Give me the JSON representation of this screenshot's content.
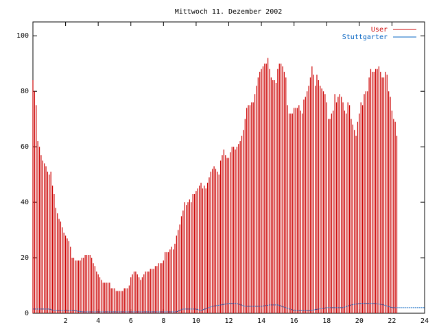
{
  "chart_data": {
    "type": "bar",
    "title": "Mittwoch 11. Dezember 2002",
    "xlim": [
      0,
      24
    ],
    "ylim": [
      0,
      105
    ],
    "xticks": [
      2,
      4,
      6,
      8,
      10,
      12,
      14,
      16,
      18,
      20,
      22,
      24
    ],
    "yticks": [
      0,
      20,
      40,
      60,
      80,
      100
    ],
    "legend_position": "top-right",
    "series": [
      {
        "name": "User",
        "kind": "impulses",
        "color": "#cc0000",
        "points": [
          [
            0.0,
            84
          ],
          [
            0.1,
            80
          ],
          [
            0.2,
            75
          ],
          [
            0.3,
            62
          ],
          [
            0.4,
            60
          ],
          [
            0.5,
            57
          ],
          [
            0.6,
            55
          ],
          [
            0.7,
            54
          ],
          [
            0.8,
            53
          ],
          [
            0.9,
            51
          ],
          [
            1.0,
            50
          ],
          [
            1.1,
            51
          ],
          [
            1.2,
            46
          ],
          [
            1.3,
            43
          ],
          [
            1.4,
            38
          ],
          [
            1.5,
            36
          ],
          [
            1.6,
            34
          ],
          [
            1.7,
            33
          ],
          [
            1.8,
            31
          ],
          [
            1.9,
            29
          ],
          [
            2.0,
            28
          ],
          [
            2.1,
            27
          ],
          [
            2.2,
            26
          ],
          [
            2.3,
            24
          ],
          [
            2.4,
            20
          ],
          [
            2.5,
            20
          ],
          [
            2.6,
            19
          ],
          [
            2.7,
            19
          ],
          [
            2.8,
            19
          ],
          [
            2.9,
            19
          ],
          [
            3.0,
            20
          ],
          [
            3.1,
            20
          ],
          [
            3.2,
            21
          ],
          [
            3.3,
            21
          ],
          [
            3.4,
            21
          ],
          [
            3.5,
            21
          ],
          [
            3.6,
            20
          ],
          [
            3.7,
            18
          ],
          [
            3.8,
            17
          ],
          [
            3.9,
            15
          ],
          [
            4.0,
            14
          ],
          [
            4.1,
            13
          ],
          [
            4.2,
            12
          ],
          [
            4.3,
            11
          ],
          [
            4.4,
            11
          ],
          [
            4.5,
            11
          ],
          [
            4.6,
            11
          ],
          [
            4.7,
            11
          ],
          [
            4.8,
            9
          ],
          [
            4.9,
            9
          ],
          [
            5.0,
            9
          ],
          [
            5.1,
            8
          ],
          [
            5.2,
            8
          ],
          [
            5.3,
            8
          ],
          [
            5.4,
            8
          ],
          [
            5.5,
            8
          ],
          [
            5.6,
            9
          ],
          [
            5.7,
            9
          ],
          [
            5.8,
            9
          ],
          [
            5.9,
            10
          ],
          [
            6.0,
            13
          ],
          [
            6.1,
            14
          ],
          [
            6.2,
            15
          ],
          [
            6.3,
            15
          ],
          [
            6.4,
            14
          ],
          [
            6.5,
            13
          ],
          [
            6.6,
            12
          ],
          [
            6.7,
            13
          ],
          [
            6.8,
            14
          ],
          [
            6.9,
            15
          ],
          [
            7.0,
            15
          ],
          [
            7.1,
            15
          ],
          [
            7.2,
            16
          ],
          [
            7.3,
            16
          ],
          [
            7.4,
            16
          ],
          [
            7.5,
            17
          ],
          [
            7.6,
            17
          ],
          [
            7.7,
            18
          ],
          [
            7.8,
            18
          ],
          [
            7.9,
            18
          ],
          [
            8.0,
            19
          ],
          [
            8.1,
            22
          ],
          [
            8.2,
            22
          ],
          [
            8.3,
            22
          ],
          [
            8.4,
            23
          ],
          [
            8.5,
            24
          ],
          [
            8.6,
            23
          ],
          [
            8.7,
            25
          ],
          [
            8.8,
            28
          ],
          [
            8.9,
            30
          ],
          [
            9.0,
            32
          ],
          [
            9.1,
            35
          ],
          [
            9.2,
            37
          ],
          [
            9.3,
            40
          ],
          [
            9.4,
            39
          ],
          [
            9.5,
            40
          ],
          [
            9.6,
            41
          ],
          [
            9.7,
            40
          ],
          [
            9.8,
            43
          ],
          [
            9.9,
            43
          ],
          [
            10.0,
            44
          ],
          [
            10.1,
            45
          ],
          [
            10.2,
            46
          ],
          [
            10.3,
            47
          ],
          [
            10.4,
            45
          ],
          [
            10.5,
            46
          ],
          [
            10.6,
            45
          ],
          [
            10.7,
            47
          ],
          [
            10.8,
            49
          ],
          [
            10.9,
            51
          ],
          [
            11.0,
            52
          ],
          [
            11.1,
            53
          ],
          [
            11.2,
            52
          ],
          [
            11.3,
            51
          ],
          [
            11.4,
            50
          ],
          [
            11.5,
            55
          ],
          [
            11.6,
            57
          ],
          [
            11.7,
            59
          ],
          [
            11.8,
            57
          ],
          [
            11.9,
            56
          ],
          [
            12.0,
            56
          ],
          [
            12.1,
            58
          ],
          [
            12.2,
            60
          ],
          [
            12.3,
            60
          ],
          [
            12.4,
            59
          ],
          [
            12.5,
            60
          ],
          [
            12.6,
            61
          ],
          [
            12.7,
            62
          ],
          [
            12.8,
            64
          ],
          [
            12.9,
            66
          ],
          [
            13.0,
            70
          ],
          [
            13.1,
            74
          ],
          [
            13.2,
            75
          ],
          [
            13.3,
            75
          ],
          [
            13.4,
            76
          ],
          [
            13.5,
            76
          ],
          [
            13.6,
            79
          ],
          [
            13.7,
            82
          ],
          [
            13.8,
            85
          ],
          [
            13.9,
            87
          ],
          [
            14.0,
            88
          ],
          [
            14.1,
            89
          ],
          [
            14.2,
            90
          ],
          [
            14.3,
            90
          ],
          [
            14.4,
            92
          ],
          [
            14.5,
            88
          ],
          [
            14.6,
            85
          ],
          [
            14.7,
            84
          ],
          [
            14.8,
            84
          ],
          [
            14.9,
            83
          ],
          [
            15.0,
            88
          ],
          [
            15.1,
            90
          ],
          [
            15.2,
            90
          ],
          [
            15.3,
            89
          ],
          [
            15.4,
            87
          ],
          [
            15.5,
            85
          ],
          [
            15.6,
            75
          ],
          [
            15.7,
            72
          ],
          [
            15.8,
            72
          ],
          [
            15.9,
            72
          ],
          [
            16.0,
            74
          ],
          [
            16.1,
            74
          ],
          [
            16.2,
            74
          ],
          [
            16.3,
            75
          ],
          [
            16.4,
            73
          ],
          [
            16.5,
            72
          ],
          [
            16.6,
            77
          ],
          [
            16.7,
            78
          ],
          [
            16.8,
            80
          ],
          [
            16.9,
            82
          ],
          [
            17.0,
            85
          ],
          [
            17.1,
            89
          ],
          [
            17.2,
            86
          ],
          [
            17.3,
            82
          ],
          [
            17.4,
            86
          ],
          [
            17.5,
            84
          ],
          [
            17.6,
            82
          ],
          [
            17.7,
            81
          ],
          [
            17.8,
            80
          ],
          [
            17.9,
            79
          ],
          [
            18.0,
            76
          ],
          [
            18.1,
            70
          ],
          [
            18.2,
            70
          ],
          [
            18.3,
            72
          ],
          [
            18.4,
            73
          ],
          [
            18.5,
            79
          ],
          [
            18.6,
            76
          ],
          [
            18.7,
            78
          ],
          [
            18.8,
            79
          ],
          [
            18.9,
            78
          ],
          [
            19.0,
            76
          ],
          [
            19.1,
            73
          ],
          [
            19.2,
            72
          ],
          [
            19.3,
            76
          ],
          [
            19.4,
            75
          ],
          [
            19.5,
            70
          ],
          [
            19.6,
            68
          ],
          [
            19.7,
            66
          ],
          [
            19.8,
            64
          ],
          [
            19.9,
            69
          ],
          [
            20.0,
            72
          ],
          [
            20.1,
            76
          ],
          [
            20.2,
            75
          ],
          [
            20.3,
            79
          ],
          [
            20.4,
            80
          ],
          [
            20.5,
            80
          ],
          [
            20.6,
            85
          ],
          [
            20.7,
            88
          ],
          [
            20.8,
            87
          ],
          [
            20.9,
            87
          ],
          [
            21.0,
            88
          ],
          [
            21.1,
            88
          ],
          [
            21.2,
            89
          ],
          [
            21.3,
            87
          ],
          [
            21.4,
            85
          ],
          [
            21.5,
            85
          ],
          [
            21.6,
            87
          ],
          [
            21.7,
            86
          ],
          [
            21.8,
            80
          ],
          [
            21.9,
            78
          ],
          [
            22.0,
            73
          ],
          [
            22.1,
            70
          ],
          [
            22.2,
            69
          ],
          [
            22.3,
            64
          ]
        ]
      },
      {
        "name": "Stuttgarter",
        "kind": "line",
        "color": "#0060c0",
        "points": [
          [
            0,
            1.5
          ],
          [
            1,
            1.5
          ],
          [
            1.3,
            1
          ],
          [
            2.5,
            1
          ],
          [
            3,
            0.5
          ],
          [
            8.8,
            0.5
          ],
          [
            9.2,
            1.5
          ],
          [
            10,
            1.5
          ],
          [
            10.3,
            1
          ],
          [
            11,
            2.5
          ],
          [
            11.5,
            3
          ],
          [
            12,
            3.5
          ],
          [
            12.5,
            3.5
          ],
          [
            13,
            2.5
          ],
          [
            14,
            2.5
          ],
          [
            14.5,
            3
          ],
          [
            15,
            3
          ],
          [
            16,
            1
          ],
          [
            17,
            1
          ],
          [
            18,
            2
          ],
          [
            19,
            2
          ],
          [
            19.5,
            3
          ],
          [
            20,
            3.5
          ],
          [
            21,
            3.5
          ],
          [
            21.5,
            3
          ],
          [
            22,
            2
          ],
          [
            24,
            2
          ]
        ]
      }
    ]
  }
}
